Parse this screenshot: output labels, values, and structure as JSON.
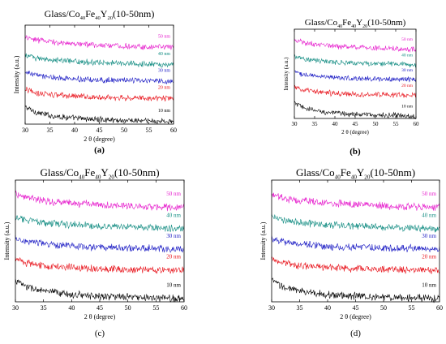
{
  "figure": {
    "panels": [
      {
        "label": "(a)",
        "title_main": "Glass/Co",
        "title_parts": [
          {
            "t": "Glass/Co",
            "sub": false
          },
          {
            "t": "40",
            "sub": true
          },
          {
            "t": "Fe",
            "sub": false
          },
          {
            "t": "40",
            "sub": true
          },
          {
            "t": "Y",
            "sub": false
          },
          {
            "t": "20",
            "sub": true
          },
          {
            "t": "(10-50nm)",
            "sub": false
          }
        ],
        "xlabel": "2 θ (degree)",
        "ylabel": "Intensity (a.u.)"
      },
      {
        "label": "(b)",
        "title_parts": [
          {
            "t": "Glass/Co",
            "sub": false
          },
          {
            "t": "40",
            "sub": true
          },
          {
            "t": "Fe",
            "sub": false
          },
          {
            "t": "40",
            "sub": true
          },
          {
            "t": "Y",
            "sub": false
          },
          {
            "t": "20",
            "sub": true
          },
          {
            "t": "(10-50nm)",
            "sub": false
          }
        ],
        "xlabel": "2 θ (degree)",
        "ylabel": "Intensity (a.u.)"
      },
      {
        "label": "(c)",
        "title_parts": [
          {
            "t": "Glass/Co",
            "sub": false
          },
          {
            "t": "40",
            "sub": true
          },
          {
            "t": "Fe",
            "sub": false
          },
          {
            "t": "40",
            "sub": true
          },
          {
            "t": "Y",
            "sub": false
          },
          {
            "t": "20",
            "sub": true
          },
          {
            "t": "(10-50nm)",
            "sub": false
          }
        ],
        "xlabel": "2 θ (degree)",
        "ylabel": "Intensity (a.u.)"
      },
      {
        "label": "(d)",
        "title_parts": [
          {
            "t": "Glass/Co",
            "sub": false
          },
          {
            "t": "40",
            "sub": true
          },
          {
            "t": "Fe",
            "sub": false
          },
          {
            "t": "40",
            "sub": true
          },
          {
            "t": "Y",
            "sub": false
          },
          {
            "t": "20",
            "sub": true
          },
          {
            "t": "(10-50nm)",
            "sub": false
          }
        ],
        "xlabel": "2 θ (degree)",
        "ylabel": "Intensity (a.u.)"
      }
    ]
  },
  "chart_data": {
    "type": "line",
    "xlim": [
      30,
      60
    ],
    "xticks": [
      30,
      35,
      40,
      45,
      50,
      55,
      60
    ],
    "yticks_shown": false,
    "grid": false,
    "series": [
      {
        "name": "10 nm",
        "color": "#000000",
        "x": [
          30,
          32,
          35,
          40,
          45,
          50,
          55,
          60
        ],
        "y": [
          1.0,
          0.7,
          0.5,
          0.34,
          0.27,
          0.22,
          0.18,
          0.15
        ]
      },
      {
        "name": "20 nm",
        "color": "#e8141c",
        "x": [
          30,
          32,
          35,
          40,
          45,
          50,
          55,
          60
        ],
        "y": [
          2.0,
          1.82,
          1.7,
          1.6,
          1.55,
          1.52,
          1.5,
          1.48
        ]
      },
      {
        "name": "30 nm",
        "color": "#1c1cc4",
        "x": [
          30,
          32,
          35,
          40,
          45,
          50,
          55,
          60
        ],
        "y": [
          3.0,
          2.82,
          2.7,
          2.6,
          2.55,
          2.52,
          2.5,
          2.46
        ]
      },
      {
        "name": "40 nm",
        "color": "#128c82",
        "x": [
          30,
          32,
          35,
          40,
          45,
          50,
          55,
          60
        ],
        "y": [
          4.0,
          3.82,
          3.7,
          3.6,
          3.54,
          3.5,
          3.46,
          3.42
        ]
      },
      {
        "name": "50 nm",
        "color": "#e61ecd",
        "x": [
          30,
          32,
          35,
          40,
          45,
          50,
          55,
          60
        ],
        "y": [
          5.05,
          4.86,
          4.74,
          4.62,
          4.55,
          4.5,
          4.46,
          4.42
        ]
      }
    ]
  }
}
